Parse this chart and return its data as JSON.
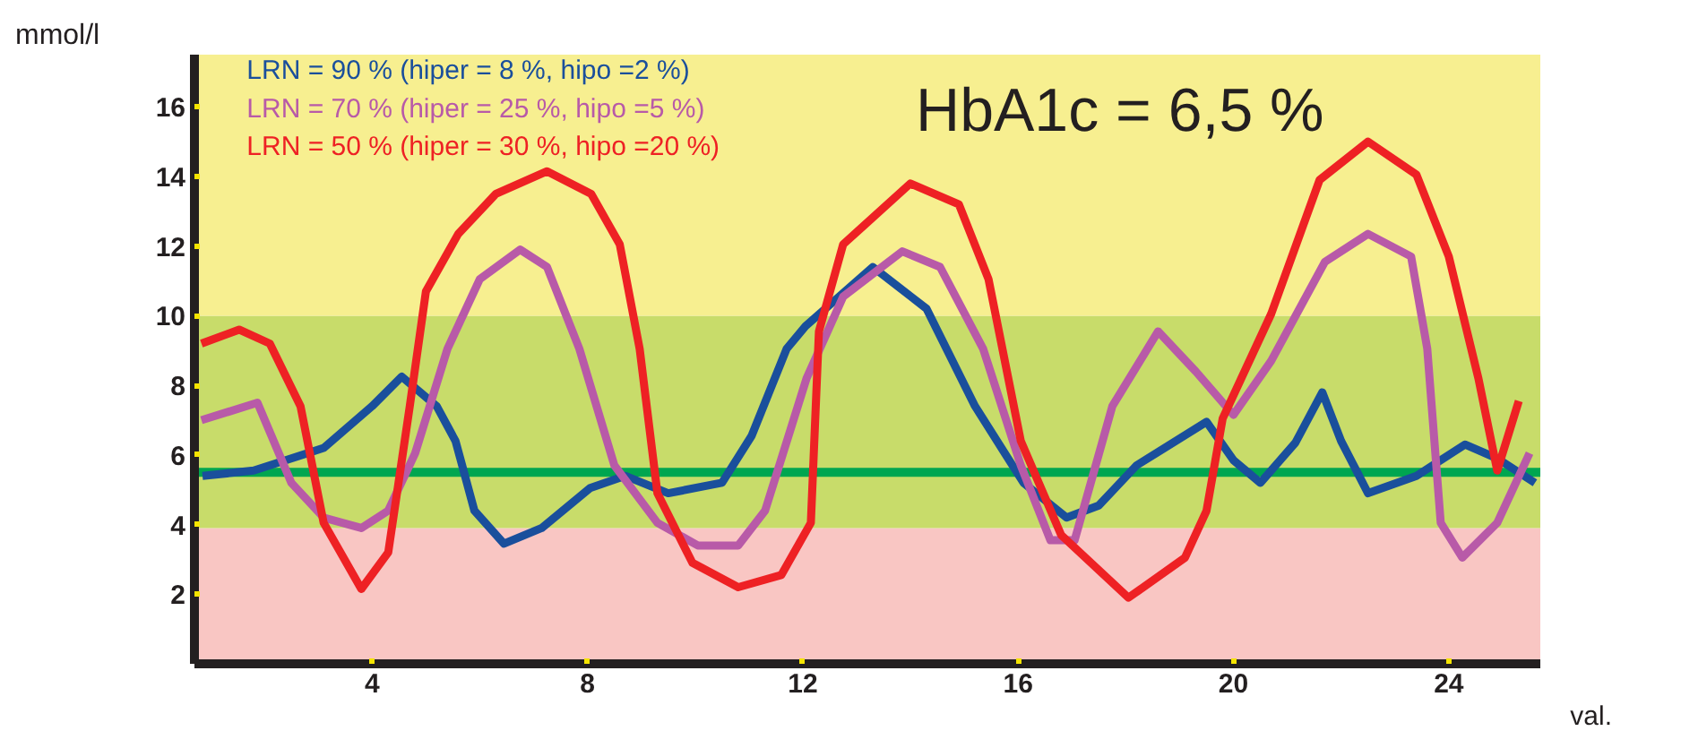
{
  "chart_data": {
    "type": "line",
    "ylabel": "mmol/l",
    "xlabel": "val.",
    "xlim": [
      0.7,
      25.7
    ],
    "ylim": [
      0,
      17.5
    ],
    "xticks": [
      4,
      8,
      12,
      16,
      20,
      24
    ],
    "yticks": [
      2,
      4,
      6,
      8,
      10,
      12,
      14,
      16
    ],
    "series": [
      {
        "name": "LRN = 90 % (hiper = 8 %, hipo =2 %)",
        "color": "#1a4f9c",
        "x": [
          0.85,
          1.8,
          3.1,
          4.0,
          4.55,
          5.2,
          5.55,
          5.9,
          6.45,
          7.15,
          8.05,
          8.7,
          9.5,
          10.5,
          11.05,
          11.7,
          12.05,
          13.3,
          14.3,
          15.2,
          16.1,
          16.9,
          17.5,
          18.2,
          19.5,
          20.0,
          20.5,
          21.15,
          21.65,
          22.0,
          22.5,
          23.4,
          24.3,
          24.9,
          25.6
        ],
        "values": [
          5.4,
          5.55,
          6.2,
          7.4,
          8.25,
          7.4,
          6.4,
          4.4,
          3.45,
          3.9,
          5.05,
          5.4,
          4.9,
          5.2,
          6.55,
          9.05,
          9.7,
          11.4,
          10.2,
          7.4,
          5.2,
          4.2,
          4.55,
          5.7,
          6.95,
          5.85,
          5.2,
          6.35,
          7.8,
          6.4,
          4.9,
          5.4,
          6.3,
          5.9,
          5.2
        ]
      },
      {
        "name": "LRN = 70 % (hiper = 25 %, hipo =5 %)",
        "color": "#b85aa8",
        "x": [
          0.83,
          1.87,
          2.5,
          3.1,
          3.8,
          4.3,
          4.8,
          5.4,
          6.0,
          6.75,
          7.25,
          7.85,
          8.5,
          9.3,
          10.05,
          10.8,
          11.3,
          12.07,
          12.75,
          13.85,
          14.55,
          15.35,
          16.05,
          16.6,
          17.05,
          17.75,
          18.6,
          19.3,
          20.0,
          20.7,
          21.7,
          22.5,
          23.3,
          23.6,
          23.85,
          24.25,
          24.9,
          25.5
        ],
        "values": [
          7.0,
          7.5,
          5.2,
          4.2,
          3.9,
          4.4,
          6.05,
          9.05,
          11.05,
          11.9,
          11.4,
          9.05,
          5.7,
          4.05,
          3.4,
          3.4,
          4.4,
          8.2,
          10.55,
          11.85,
          11.4,
          9.05,
          5.7,
          3.55,
          3.55,
          7.4,
          9.55,
          8.4,
          7.15,
          8.7,
          11.55,
          12.35,
          11.7,
          9.05,
          4.05,
          3.05,
          4.05,
          6.05
        ]
      },
      {
        "name": "LRN = 50 % (hiper = 30 %, hipo =20 %)",
        "color": "#ee2124",
        "x": [
          0.83,
          1.53,
          2.1,
          2.67,
          3.1,
          3.8,
          4.3,
          4.7,
          5.0,
          5.6,
          6.3,
          7.25,
          8.07,
          8.6,
          8.97,
          9.3,
          9.95,
          10.8,
          11.6,
          12.15,
          12.3,
          12.75,
          14.0,
          14.9,
          15.45,
          16.05,
          16.8,
          18.05,
          19.1,
          19.5,
          19.8,
          20.7,
          21.6,
          22.5,
          23.4,
          24.0,
          24.55,
          24.9,
          25.3
        ],
        "values": [
          9.2,
          9.6,
          9.2,
          7.4,
          4.05,
          2.15,
          3.2,
          7.4,
          10.7,
          12.35,
          13.5,
          14.15,
          13.5,
          12.05,
          9.05,
          4.9,
          2.9,
          2.2,
          2.55,
          4.05,
          9.55,
          12.05,
          13.8,
          13.2,
          11.05,
          6.4,
          3.7,
          1.9,
          3.05,
          4.4,
          7.05,
          10.05,
          13.9,
          15.0,
          14.05,
          11.7,
          8.2,
          5.55,
          7.55
        ]
      }
    ],
    "bands": [
      {
        "axis": "y",
        "from": 0,
        "to": 3.9,
        "color": "#f9c6c3"
      },
      {
        "axis": "y",
        "from": 3.9,
        "to": 10,
        "color": "#c8dc6a"
      },
      {
        "axis": "y",
        "from": 10,
        "to": 17.5,
        "color": "#f7ef90"
      }
    ],
    "ref_lines": [
      {
        "axis": "y",
        "value": 5.5,
        "color": "#00a650",
        "line_style": "solid"
      }
    ],
    "annotations": [
      "HbA1c = 6,5 %"
    ]
  }
}
